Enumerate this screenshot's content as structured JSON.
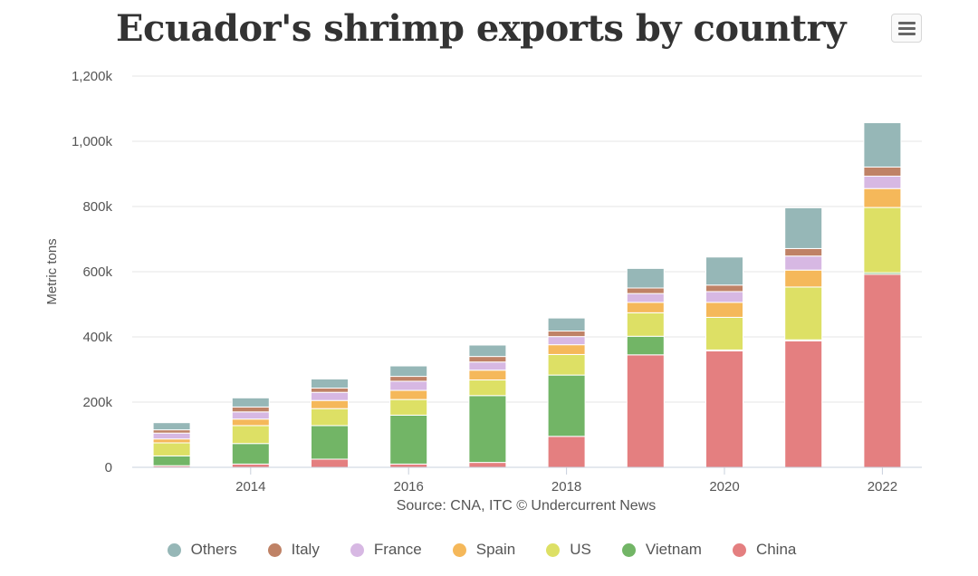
{
  "header": {
    "title": "Ecuador's shrimp exports by country",
    "menu_icon": "hamburger-menu-icon"
  },
  "source": "Source: CNA, ITC © Undercurrent News",
  "colors": {
    "China": "#e47f80",
    "Vietnam": "#72b566",
    "US": "#dde065",
    "Spain": "#f5b85a",
    "France": "#d7b8e3",
    "Italy": "#bf8266",
    "Others": "#96b7b7"
  },
  "chart_data": {
    "type": "bar",
    "stacked": true,
    "title": "Ecuador's shrimp exports by country",
    "xlabel": "",
    "ylabel": "Metric tons",
    "ylim": [
      0,
      1200000
    ],
    "y_ticks": [
      0,
      200000,
      400000,
      600000,
      800000,
      1000000,
      1200000
    ],
    "y_tick_labels": [
      "0",
      "200k",
      "400k",
      "600k",
      "800k",
      "1,000k",
      "1,200k"
    ],
    "categories": [
      2013,
      2014,
      2015,
      2016,
      2017,
      2018,
      2019,
      2020,
      2021,
      2022
    ],
    "x_tick_labels": [
      {
        "year": 2014,
        "label": "2014"
      },
      {
        "year": 2016,
        "label": "2016"
      },
      {
        "year": 2018,
        "label": "2018"
      },
      {
        "year": 2020,
        "label": "2020"
      },
      {
        "year": 2022,
        "label": "2022"
      }
    ],
    "series": [
      {
        "name": "China",
        "values": [
          5000,
          10000,
          25000,
          10000,
          15000,
          95000,
          345000,
          357000,
          388000,
          592000
        ]
      },
      {
        "name": "Vietnam",
        "values": [
          30000,
          63000,
          103000,
          150000,
          205000,
          188000,
          57000,
          3000,
          3000,
          5000
        ]
      },
      {
        "name": "US",
        "values": [
          40000,
          55000,
          52000,
          48000,
          48000,
          63000,
          72000,
          100000,
          162000,
          200000
        ]
      },
      {
        "name": "Spain",
        "values": [
          12000,
          20000,
          25000,
          28000,
          30000,
          30000,
          32000,
          46000,
          52000,
          58000
        ]
      },
      {
        "name": "France",
        "values": [
          18000,
          22000,
          25000,
          28000,
          25000,
          25000,
          27000,
          33000,
          43000,
          38000
        ]
      },
      {
        "name": "Italy",
        "values": [
          10000,
          15000,
          13000,
          15000,
          17000,
          17000,
          17000,
          20000,
          23000,
          28000
        ]
      },
      {
        "name": "Others",
        "values": [
          22000,
          28000,
          28000,
          32000,
          35000,
          40000,
          60000,
          86000,
          125000,
          136000
        ]
      }
    ],
    "legend": [
      "Others",
      "Italy",
      "France",
      "Spain",
      "US",
      "Vietnam",
      "China"
    ],
    "legend_position": "bottom",
    "grid": true
  }
}
